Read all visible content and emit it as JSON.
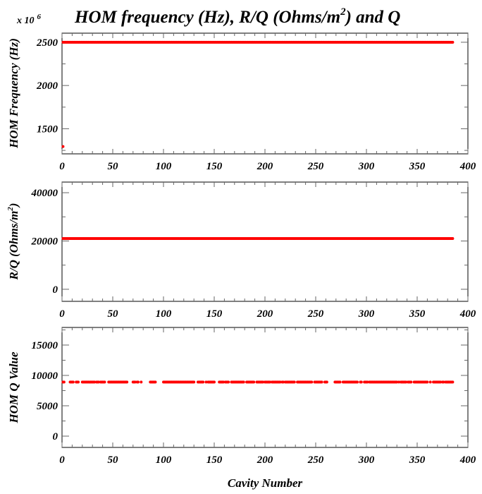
{
  "chart_data": [
    {
      "type": "scatter",
      "title": "HOM frequency (Hz), R/Q (Ohms/m",
      "title_sup": "2",
      "title_tail": ") and Q",
      "multiplier": "x 10",
      "multiplier_exp": "6",
      "ylabel": "HOM Frequency (Hz)",
      "xlim": [
        0,
        400
      ],
      "ylim": [
        1210,
        2605
      ],
      "xticks": [
        0,
        50,
        100,
        150,
        200,
        250,
        300,
        350,
        400
      ],
      "yticks": [
        1500,
        2000,
        2500
      ],
      "series": [
        {
          "name": "frequency",
          "x_range": [
            1,
            385
          ],
          "value": 2500,
          "color": "#ff0000"
        },
        {
          "name": "outlier",
          "points": [
            [
              1,
              1295
            ]
          ],
          "color": "#ff0000"
        }
      ]
    },
    {
      "type": "scatter",
      "ylabel": "R/Q (Ohms/m",
      "ylabel_sup": "2",
      "ylabel_tail": ")",
      "xlim": [
        0,
        400
      ],
      "ylim": [
        -5000,
        44400
      ],
      "xticks": [
        0,
        50,
        100,
        150,
        200,
        250,
        300,
        350,
        400
      ],
      "yticks": [
        0,
        20000,
        40000
      ],
      "series": [
        {
          "name": "R/Q",
          "x_range": [
            1,
            385
          ],
          "value": 21000,
          "color": "#ff0000"
        }
      ]
    },
    {
      "type": "scatter",
      "ylabel": "HOM Q Value",
      "xlabel": "Cavity Number",
      "xlim": [
        0,
        400
      ],
      "ylim": [
        -1860,
        17900
      ],
      "xticks": [
        0,
        50,
        100,
        150,
        200,
        250,
        300,
        350,
        400
      ],
      "yticks": [
        0,
        5000,
        10000,
        15000
      ],
      "series": [
        {
          "name": "Q",
          "x_range": [
            1,
            385
          ],
          "value": 8900,
          "color": "#ff0000",
          "missing": [
            3,
            4,
            5,
            6,
            7,
            12,
            13,
            17,
            18,
            19,
            33,
            37,
            43,
            44,
            45,
            65,
            66,
            67,
            68,
            69,
            73,
            76,
            77,
            79,
            80,
            81,
            82,
            83,
            84,
            85,
            86,
            93,
            94,
            95,
            96,
            97,
            98,
            99,
            131,
            132,
            133,
            140,
            141,
            143,
            151,
            152,
            153,
            154,
            160,
            165,
            166,
            180,
            181,
            190,
            191,
            199,
            206,
            216,
            219,
            230,
            231,
            247,
            248,
            257,
            258,
            262,
            263,
            264,
            265,
            266,
            267,
            268,
            275,
            276,
            292,
            293,
            296,
            297,
            302,
            331,
            333,
            340,
            345,
            346,
            361,
            362,
            364,
            365,
            374,
            377
          ]
        }
      ]
    }
  ]
}
